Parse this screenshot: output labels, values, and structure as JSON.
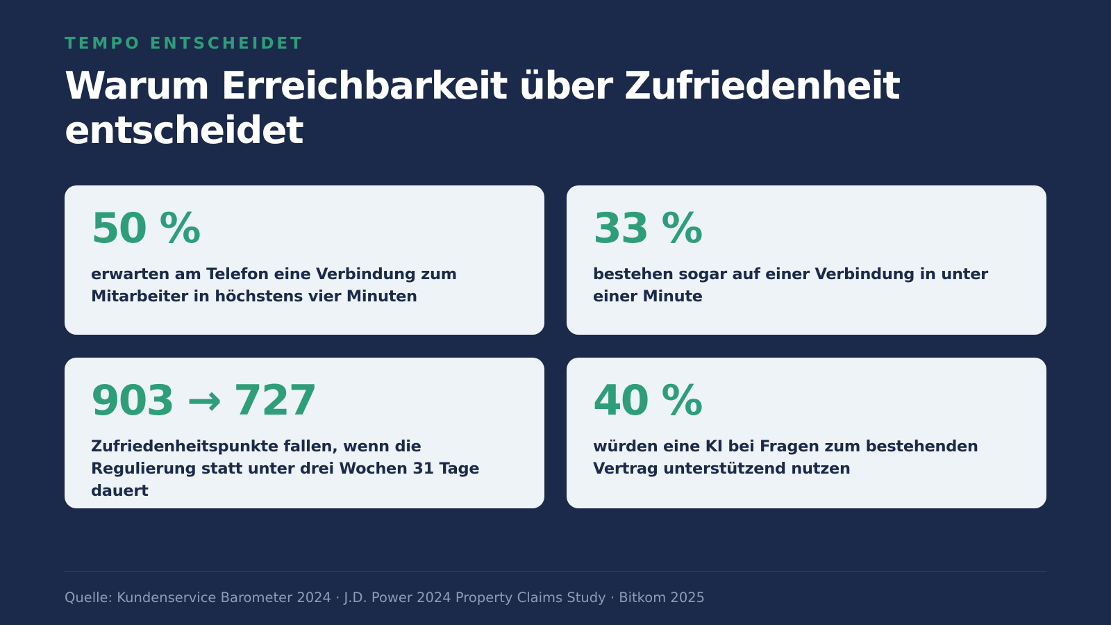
{
  "header": {
    "eyebrow": "TEMPO ENTSCHEIDET",
    "title": "Warum Erreichbarkeit über Zufriedenheit entscheidet"
  },
  "cards": [
    {
      "stat": "50 %",
      "description": "erwarten am Telefon eine Verbindung zum Mitarbeiter in höchstens vier Minuten"
    },
    {
      "stat": "33 %",
      "description": "bestehen sogar auf einer Verbindung in unter einer Minute"
    },
    {
      "stat": "903 → 727",
      "description": "Zufriedenheitspunkte fallen, wenn die Regulierung statt unter drei Wochen 31 Tage dauert"
    },
    {
      "stat": "40 %",
      "description": "würden eine KI bei Fragen zum bestehenden Vertrag unterstützend nutzen"
    }
  ],
  "footer": {
    "source": "Quelle: Kundenservice Barometer 2024 · J.D. Power 2024 Property Claims Study · Bitkom 2025"
  },
  "colors": {
    "background": "#1b2a4a",
    "accent": "#2e9e78",
    "card": "#eef3f8",
    "text_dark": "#1b2a4a",
    "muted": "#8f9bb8"
  }
}
